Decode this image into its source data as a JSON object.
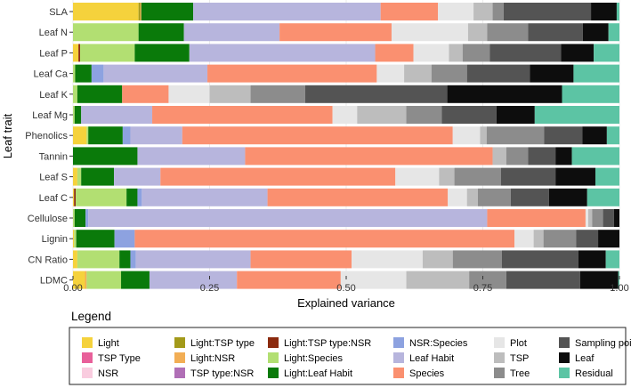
{
  "chart_data": {
    "type": "bar",
    "orientation": "horizontal",
    "stacked": true,
    "xlabel": "Explained variance",
    "ylabel": "Leaf trait",
    "xlim": [
      0,
      1
    ],
    "x_ticks": [
      "0.00",
      "0.25",
      "0.50",
      "0.75",
      "1.00"
    ],
    "categories": [
      "SLA",
      "Leaf N",
      "Leaf P",
      "Leaf Ca",
      "Leaf K",
      "Leaf Mg",
      "Phenolics",
      "Tannin",
      "Leaf S",
      "Leaf C",
      "Cellulose",
      "Lignin",
      "CN Ratio",
      "LDMC"
    ],
    "legend": {
      "title": "Legend",
      "columns": [
        [
          "Light",
          "TSP Type",
          "NSR"
        ],
        [
          "Light:TSP type",
          "Light:NSR",
          "TSP type:NSR"
        ],
        [
          "Light:TSP type:NSR",
          "Light:Species",
          "Light:Leaf Habit"
        ],
        [
          "NSR:Species",
          "Leaf Habit",
          "Species"
        ],
        [
          "Plot",
          "TSP",
          "Tree"
        ],
        [
          "Sampling point",
          "Leaf",
          "Residual"
        ]
      ]
    },
    "series": [
      {
        "name": "Light",
        "color": "#F5D23C",
        "values": [
          0.12,
          0.0,
          0.01,
          0.0,
          0.0,
          0.0,
          0.025,
          0.0,
          0.008,
          0.002,
          0.0,
          0.002,
          0.008,
          0.022
        ]
      },
      {
        "name": "TSP Type",
        "color": "#E8609A",
        "values": [
          0,
          0,
          0,
          0,
          0,
          0,
          0,
          0,
          0,
          0,
          0,
          0,
          0,
          0
        ]
      },
      {
        "name": "NSR",
        "color": "#F9CCDF",
        "values": [
          0,
          0,
          0,
          0,
          0,
          0,
          0,
          0,
          0,
          0,
          0,
          0,
          0,
          0
        ]
      },
      {
        "name": "Light:TSP type",
        "color": "#A39A1A",
        "values": [
          0.003,
          0.0,
          0.0,
          0.0,
          0.0,
          0.0,
          0.0,
          0.0,
          0.0,
          0.0,
          0.0,
          0.0,
          0.0,
          0.0
        ]
      },
      {
        "name": "Light:NSR",
        "color": "#F2AE55",
        "values": [
          0.002,
          0.0,
          0.0,
          0.0,
          0.0,
          0.0,
          0.0,
          0.0,
          0.0,
          0.0,
          0.0,
          0.0,
          0.0,
          0.003
        ]
      },
      {
        "name": "TSP type:NSR",
        "color": "#B06FB6",
        "values": [
          0,
          0,
          0,
          0,
          0,
          0,
          0,
          0,
          0,
          0,
          0,
          0,
          0,
          0
        ]
      },
      {
        "name": "Light:TSP type:NSR",
        "color": "#8B2A0E",
        "values": [
          0.0,
          0.0,
          0.003,
          0.0,
          0.0,
          0.0,
          0.0,
          0.0,
          0.0,
          0.003,
          0.0,
          0.0,
          0.0,
          0.0
        ]
      },
      {
        "name": "Light:Species",
        "color": "#B2DF72",
        "values": [
          0.0,
          0.12,
          0.1,
          0.004,
          0.008,
          0.003,
          0.003,
          0.0,
          0.007,
          0.093,
          0.003,
          0.004,
          0.077,
          0.063
        ]
      },
      {
        "name": "Light:Leaf Habit",
        "color": "#0A7A0A",
        "values": [
          0.095,
          0.083,
          0.1,
          0.03,
          0.082,
          0.012,
          0.063,
          0.118,
          0.06,
          0.02,
          0.02,
          0.07,
          0.02,
          0.052
        ]
      },
      {
        "name": "NSR:Species",
        "color": "#8DA2E0",
        "values": [
          0.0,
          0.0,
          0.0,
          0.022,
          0.0,
          0.0,
          0.014,
          0.0,
          0.0,
          0.008,
          0.005,
          0.037,
          0.01,
          0.0
        ]
      },
      {
        "name": "Leaf Habit",
        "color": "#B7B5DD",
        "values": [
          0.343,
          0.175,
          0.34,
          0.19,
          0.0,
          0.13,
          0.095,
          0.197,
          0.085,
          0.23,
          0.73,
          0.0,
          0.21,
          0.16
        ]
      },
      {
        "name": "Species",
        "color": "#FA9070",
        "values": [
          0.105,
          0.205,
          0.07,
          0.31,
          0.085,
          0.33,
          0.495,
          0.453,
          0.43,
          0.33,
          0.18,
          0.695,
          0.185,
          0.19
        ]
      },
      {
        "name": "Plot",
        "color": "#E6E6E6",
        "values": [
          0.065,
          0.14,
          0.065,
          0.05,
          0.075,
          0.045,
          0.05,
          0.0,
          0.08,
          0.035,
          0.005,
          0.035,
          0.13,
          0.12
        ]
      },
      {
        "name": "TSP",
        "color": "#BDBDBD",
        "values": [
          0.035,
          0.035,
          0.025,
          0.05,
          0.075,
          0.09,
          0.012,
          0.025,
          0.028,
          0.02,
          0.007,
          0.018,
          0.055,
          0.115
        ]
      },
      {
        "name": "Tree",
        "color": "#8C8C8C",
        "values": [
          0.02,
          0.075,
          0.05,
          0.065,
          0.1,
          0.065,
          0.105,
          0.04,
          0.085,
          0.06,
          0.02,
          0.06,
          0.09,
          0.068
        ]
      },
      {
        "name": "Sampling point",
        "color": "#545454",
        "values": [
          0.16,
          0.1,
          0.13,
          0.115,
          0.26,
          0.1,
          0.07,
          0.05,
          0.1,
          0.07,
          0.02,
          0.04,
          0.14,
          0.135
        ]
      },
      {
        "name": "Leaf",
        "color": "#0D0D0D",
        "values": [
          0.047,
          0.047,
          0.06,
          0.08,
          0.21,
          0.07,
          0.045,
          0.03,
          0.073,
          0.07,
          0.01,
          0.04,
          0.05,
          0.07
        ]
      },
      {
        "name": "Residual",
        "color": "#5CC4A4",
        "values": [
          0.005,
          0.02,
          0.05,
          0.084,
          0.105,
          0.155,
          0.023,
          0.087,
          0.044,
          0.059,
          0.0,
          0.001,
          0.025,
          0.002
        ]
      }
    ]
  }
}
